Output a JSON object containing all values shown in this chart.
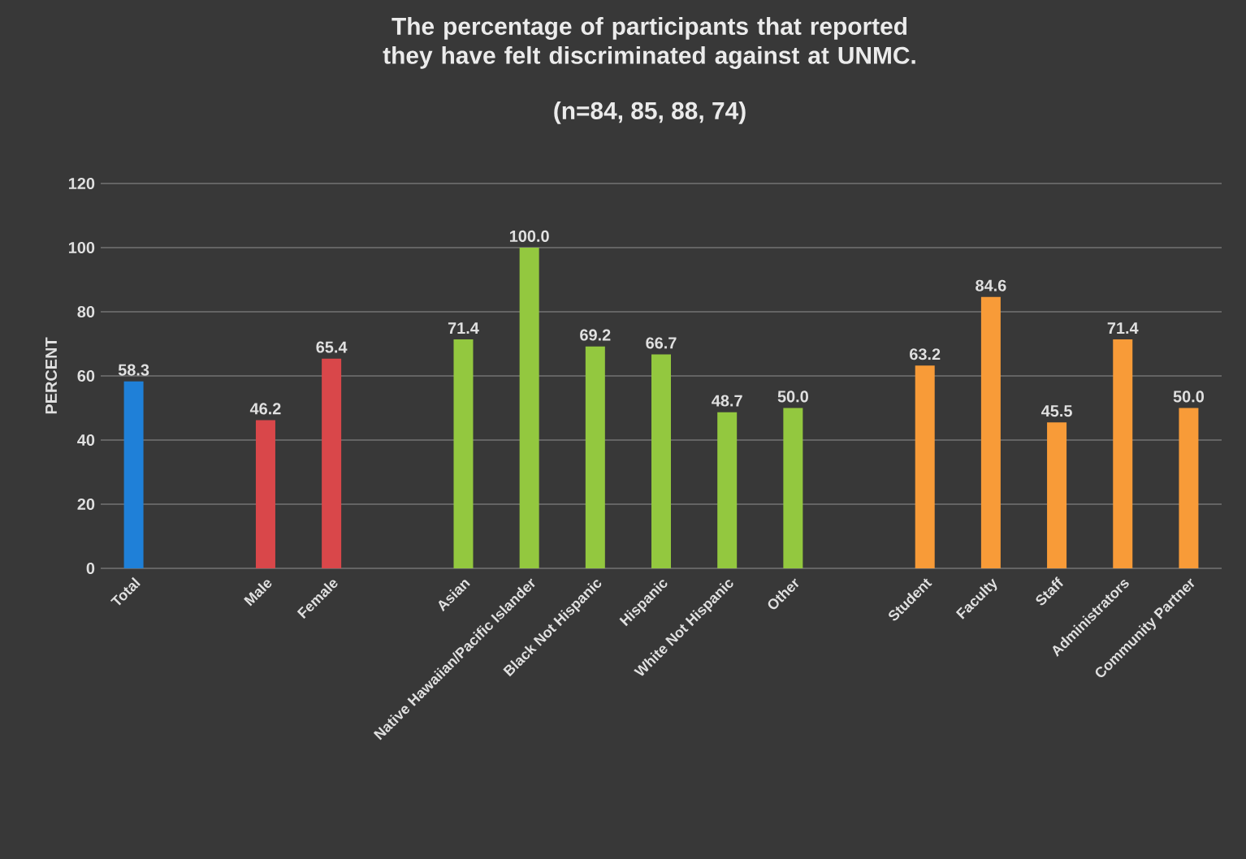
{
  "chart_data": {
    "type": "bar",
    "title": "The percentage of participants that reported they have felt discriminated against at UNMC.",
    "subtitle": "(n=84, 85, 88, 74)",
    "ylabel": "PERCENT",
    "categories": [
      "Total",
      null,
      "Male",
      "Female",
      null,
      "Asian",
      "Native Hawaiian/Pacific Islander",
      "Black Not Hispanic",
      "Hispanic",
      "White Not Hispanic",
      "Other",
      null,
      "Student",
      "Faculty",
      "Staff",
      "Administrators",
      "Community Partner"
    ],
    "values": [
      58.3,
      null,
      46.2,
      65.4,
      null,
      71.4,
      100,
      69.2,
      66.7,
      48.7,
      50,
      null,
      63.2,
      84.6,
      45.5,
      71.4,
      50
    ],
    "value_labels": [
      "58.3",
      null,
      "46.2",
      "65.4",
      null,
      "71.4",
      "100.0",
      "69.2",
      "66.7",
      "48.7",
      "50.0",
      null,
      "63.2",
      "84.6",
      "45.5",
      "71.4",
      "50.0"
    ],
    "colors": [
      "#1f80d8",
      null,
      "#d9474a",
      "#d9474a",
      null,
      "#93c83f",
      "#93c83f",
      "#93c83f",
      "#93c83f",
      "#93c83f",
      "#93c83f",
      null,
      "#f89b38",
      "#f89b38",
      "#f89b38",
      "#f89b38",
      "#f89b38"
    ],
    "ylim": [
      0,
      120
    ],
    "yticks": [
      0,
      20,
      40,
      60,
      80,
      100,
      120
    ],
    "grid": "y"
  }
}
